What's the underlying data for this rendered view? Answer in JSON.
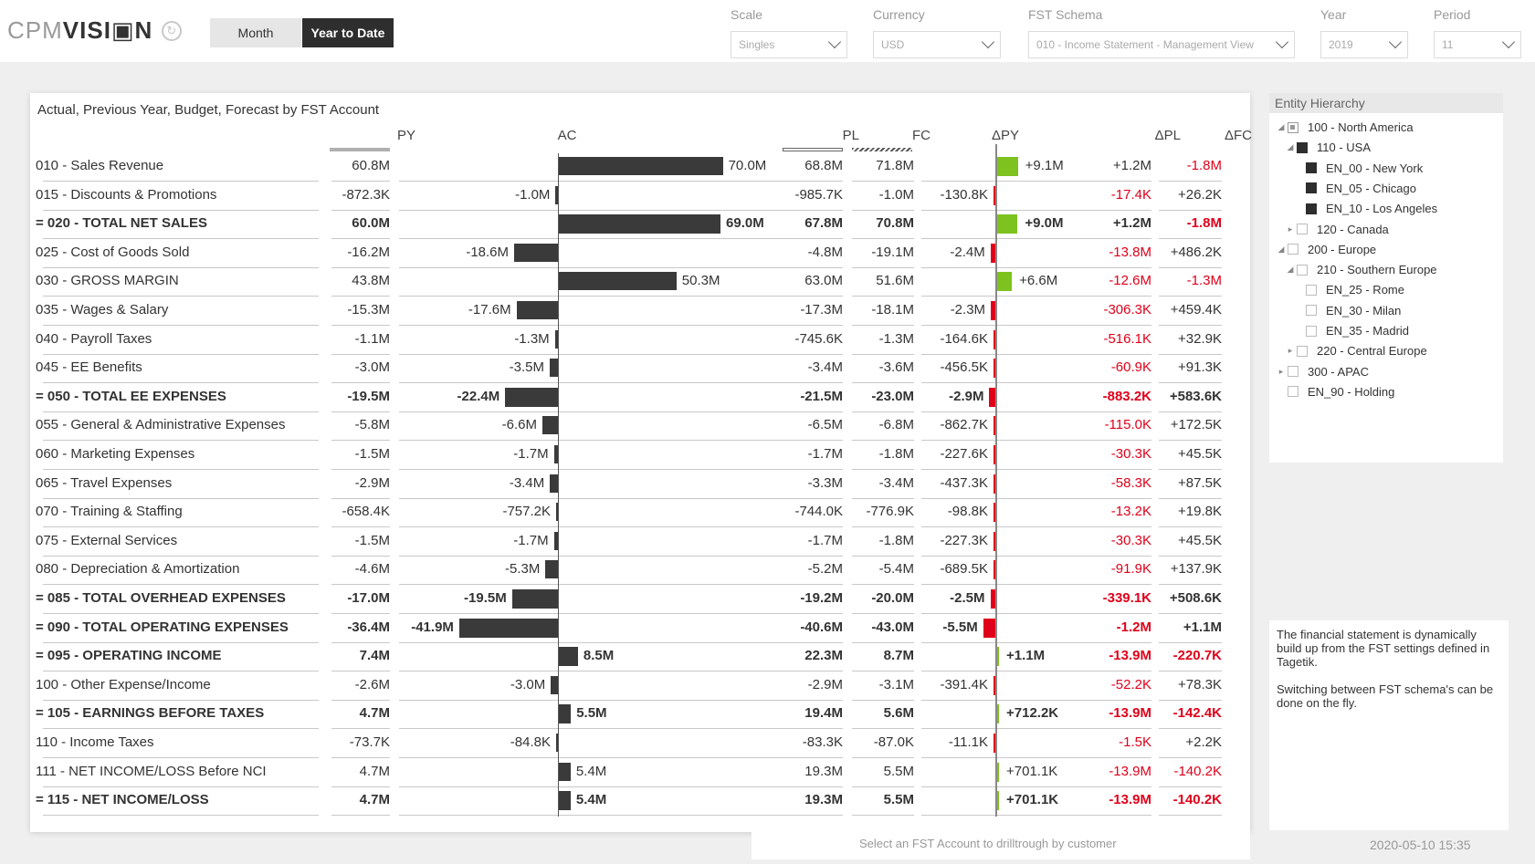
{
  "logo": {
    "cpm": "CPM",
    "vision": "VISI▣N"
  },
  "toggles": {
    "month": "Month",
    "ytd": "Year to Date"
  },
  "filters": [
    {
      "label": "Scale",
      "value": "Singles"
    },
    {
      "label": "Currency",
      "value": "USD"
    },
    {
      "label": "FST Schema",
      "value": "010 - Income Statement - Management View"
    },
    {
      "label": "Year",
      "value": "2019"
    },
    {
      "label": "Period",
      "value": "11"
    }
  ],
  "report": {
    "title": "Actual, Previous Year, Budget, Forecast by FST Account",
    "columns": {
      "py": "PY",
      "ac": "AC",
      "pl": "PL",
      "fc": "FC",
      "dpy": "ΔPY",
      "dpl": "ΔPL",
      "dfc": "ΔFC"
    },
    "footer": "Select an FST Account to drilltrough by customer"
  },
  "chart_data": {
    "type": "table",
    "columns": [
      "PY",
      "AC",
      "PL",
      "FC",
      "ΔPY",
      "ΔPL",
      "ΔFC"
    ],
    "rows": [
      {
        "label": "010 - Sales Revenue",
        "bold": false,
        "py": "60.8M",
        "ac": "70.0M",
        "ac_value": 70.0,
        "pl": "68.8M",
        "fc": "71.8M",
        "dpy": "+9.1M",
        "dpy_value": 9.1,
        "dpl": "+1.2M",
        "dfc": "-1.8M"
      },
      {
        "label": "015 - Discounts & Promotions",
        "bold": false,
        "py": "-872.3K",
        "ac": "-1.0M",
        "ac_value": -1.0,
        "pl": "-985.7K",
        "fc": "-1.0M",
        "dpy": "-130.8K",
        "dpy_value": -0.13,
        "dpl": "-17.4K",
        "dfc": "+26.2K"
      },
      {
        "label": "= 020 - TOTAL NET SALES",
        "bold": true,
        "py": "60.0M",
        "ac": "69.0M",
        "ac_value": 69.0,
        "pl": "67.8M",
        "fc": "70.8M",
        "dpy": "+9.0M",
        "dpy_value": 9.0,
        "dpl": "+1.2M",
        "dfc": "-1.8M"
      },
      {
        "label": "025 - Cost of Goods Sold",
        "bold": false,
        "py": "-16.2M",
        "ac": "-18.6M",
        "ac_value": -18.6,
        "pl": "-4.8M",
        "fc": "-19.1M",
        "dpy": "-2.4M",
        "dpy_value": -2.4,
        "dpl": "-13.8M",
        "dfc": "+486.2K"
      },
      {
        "label": "030 - GROSS MARGIN",
        "bold": false,
        "py": "43.8M",
        "ac": "50.3M",
        "ac_value": 50.3,
        "pl": "63.0M",
        "fc": "51.6M",
        "dpy": "+6.6M",
        "dpy_value": 6.6,
        "dpl": "-12.6M",
        "dfc": "-1.3M"
      },
      {
        "label": "035 - Wages & Salary",
        "bold": false,
        "py": "-15.3M",
        "ac": "-17.6M",
        "ac_value": -17.6,
        "pl": "-17.3M",
        "fc": "-18.1M",
        "dpy": "-2.3M",
        "dpy_value": -2.3,
        "dpl": "-306.3K",
        "dfc": "+459.4K"
      },
      {
        "label": "040 - Payroll Taxes",
        "bold": false,
        "py": "-1.1M",
        "ac": "-1.3M",
        "ac_value": -1.3,
        "pl": "-745.6K",
        "fc": "-1.3M",
        "dpy": "-164.6K",
        "dpy_value": -0.16,
        "dpl": "-516.1K",
        "dfc": "+32.9K"
      },
      {
        "label": "045 - EE Benefits",
        "bold": false,
        "py": "-3.0M",
        "ac": "-3.5M",
        "ac_value": -3.5,
        "pl": "-3.4M",
        "fc": "-3.6M",
        "dpy": "-456.5K",
        "dpy_value": -0.46,
        "dpl": "-60.9K",
        "dfc": "+91.3K"
      },
      {
        "label": "= 050 - TOTAL EE EXPENSES",
        "bold": true,
        "py": "-19.5M",
        "ac": "-22.4M",
        "ac_value": -22.4,
        "pl": "-21.5M",
        "fc": "-23.0M",
        "dpy": "-2.9M",
        "dpy_value": -2.9,
        "dpl": "-883.2K",
        "dfc": "+583.6K"
      },
      {
        "label": "055 - General & Administrative Expenses",
        "bold": false,
        "py": "-5.8M",
        "ac": "-6.6M",
        "ac_value": -6.6,
        "pl": "-6.5M",
        "fc": "-6.8M",
        "dpy": "-862.7K",
        "dpy_value": -0.86,
        "dpl": "-115.0K",
        "dfc": "+172.5K"
      },
      {
        "label": "060 - Marketing Expenses",
        "bold": false,
        "py": "-1.5M",
        "ac": "-1.7M",
        "ac_value": -1.7,
        "pl": "-1.7M",
        "fc": "-1.8M",
        "dpy": "-227.6K",
        "dpy_value": -0.23,
        "dpl": "-30.3K",
        "dfc": "+45.5K"
      },
      {
        "label": "065 - Travel Expenses",
        "bold": false,
        "py": "-2.9M",
        "ac": "-3.4M",
        "ac_value": -3.4,
        "pl": "-3.3M",
        "fc": "-3.4M",
        "dpy": "-437.3K",
        "dpy_value": -0.44,
        "dpl": "-58.3K",
        "dfc": "+87.5K"
      },
      {
        "label": "070 - Training & Staffing",
        "bold": false,
        "py": "-658.4K",
        "ac": "-757.2K",
        "ac_value": -0.76,
        "pl": "-744.0K",
        "fc": "-776.9K",
        "dpy": "-98.8K",
        "dpy_value": -0.1,
        "dpl": "-13.2K",
        "dfc": "+19.8K"
      },
      {
        "label": "075 - External Services",
        "bold": false,
        "py": "-1.5M",
        "ac": "-1.7M",
        "ac_value": -1.7,
        "pl": "-1.7M",
        "fc": "-1.8M",
        "dpy": "-227.3K",
        "dpy_value": -0.23,
        "dpl": "-30.3K",
        "dfc": "+45.5K"
      },
      {
        "label": "080 - Depreciation & Amortization",
        "bold": false,
        "py": "-4.6M",
        "ac": "-5.3M",
        "ac_value": -5.3,
        "pl": "-5.2M",
        "fc": "-5.4M",
        "dpy": "-689.5K",
        "dpy_value": -0.69,
        "dpl": "-91.9K",
        "dfc": "+137.9K"
      },
      {
        "label": "= 085 - TOTAL OVERHEAD EXPENSES",
        "bold": true,
        "py": "-17.0M",
        "ac": "-19.5M",
        "ac_value": -19.5,
        "pl": "-19.2M",
        "fc": "-20.0M",
        "dpy": "-2.5M",
        "dpy_value": -2.5,
        "dpl": "-339.1K",
        "dfc": "+508.6K"
      },
      {
        "label": "= 090 - TOTAL OPERATING EXPENSES",
        "bold": true,
        "py": "-36.4M",
        "ac": "-41.9M",
        "ac_value": -41.9,
        "pl": "-40.6M",
        "fc": "-43.0M",
        "dpy": "-5.5M",
        "dpy_value": -5.5,
        "dpl": "-1.2M",
        "dfc": "+1.1M"
      },
      {
        "label": "= 095 - OPERATING INCOME",
        "bold": true,
        "py": "7.4M",
        "ac": "8.5M",
        "ac_value": 8.5,
        "pl": "22.3M",
        "fc": "8.7M",
        "dpy": "+1.1M",
        "dpy_value": 1.1,
        "dpl": "-13.9M",
        "dfc": "-220.7K"
      },
      {
        "label": "100 - Other Expense/Income",
        "bold": false,
        "py": "-2.6M",
        "ac": "-3.0M",
        "ac_value": -3.0,
        "pl": "-2.9M",
        "fc": "-3.1M",
        "dpy": "-391.4K",
        "dpy_value": -0.39,
        "dpl": "-52.2K",
        "dfc": "+78.3K"
      },
      {
        "label": "= 105 - EARNINGS BEFORE TAXES",
        "bold": true,
        "py": "4.7M",
        "ac": "5.5M",
        "ac_value": 5.5,
        "pl": "19.4M",
        "fc": "5.6M",
        "dpy": "+712.2K",
        "dpy_value": 0.71,
        "dpl": "-13.9M",
        "dfc": "-142.4K"
      },
      {
        "label": "110 - Income Taxes",
        "bold": false,
        "py": "-73.7K",
        "ac": "-84.8K",
        "ac_value": -0.085,
        "pl": "-83.3K",
        "fc": "-87.0K",
        "dpy": "-11.1K",
        "dpy_value": -0.011,
        "dpl": "-1.5K",
        "dfc": "+2.2K"
      },
      {
        "label": "111 - NET INCOME/LOSS Before NCI",
        "bold": false,
        "py": "4.7M",
        "ac": "5.4M",
        "ac_value": 5.4,
        "pl": "19.3M",
        "fc": "5.5M",
        "dpy": "+701.1K",
        "dpy_value": 0.7,
        "dpl": "-13.9M",
        "dfc": "-140.2K"
      },
      {
        "label": "= 115 - NET INCOME/LOSS",
        "bold": true,
        "py": "4.7M",
        "ac": "5.4M",
        "ac_value": 5.4,
        "pl": "19.3M",
        "fc": "5.5M",
        "dpy": "+701.1K",
        "dpy_value": 0.7,
        "dpl": "-13.9M",
        "dfc": "-140.2K"
      }
    ]
  },
  "hierarchy": {
    "title": "Entity Hierarchy",
    "nodes": [
      {
        "label": "100 - North America",
        "level": 0,
        "state": "partial",
        "expander": "◢"
      },
      {
        "label": "110 - USA",
        "level": 1,
        "state": "filled",
        "expander": "◢"
      },
      {
        "label": "EN_00 - New York",
        "level": 2,
        "state": "filled",
        "expander": ""
      },
      {
        "label": "EN_05 - Chicago",
        "level": 2,
        "state": "filled",
        "expander": ""
      },
      {
        "label": "EN_10 - Los Angeles",
        "level": 2,
        "state": "filled",
        "expander": ""
      },
      {
        "label": "120 - Canada",
        "level": 1,
        "state": "empty",
        "expander": "▸"
      },
      {
        "label": "200 - Europe",
        "level": 0,
        "state": "empty",
        "expander": "◢"
      },
      {
        "label": "210 - Southern Europe",
        "level": 1,
        "state": "empty",
        "expander": "◢"
      },
      {
        "label": "EN_25 - Rome",
        "level": 2,
        "state": "empty",
        "expander": ""
      },
      {
        "label": "EN_30 - Milan",
        "level": 2,
        "state": "empty",
        "expander": ""
      },
      {
        "label": "EN_35 - Madrid",
        "level": 2,
        "state": "empty",
        "expander": ""
      },
      {
        "label": "220 - Central Europe",
        "level": 1,
        "state": "empty",
        "expander": "▸"
      },
      {
        "label": "300 - APAC",
        "level": 0,
        "state": "empty",
        "expander": "▸"
      },
      {
        "label": "EN_90 - Holding",
        "level": 0,
        "state": "empty",
        "expander": ""
      }
    ]
  },
  "note": {
    "p1": "The financial statement is dynamically build up from the FST settings defined in Tagetik.",
    "p2": "Switching between FST schema's can be done on the fly."
  },
  "timestamp": "2020-05-10 15:35",
  "colors": {
    "bar": "#3a3a3a",
    "positive": "#7dc21e",
    "negative": "#e0001a",
    "toggle_active": "#2e2e2e"
  }
}
